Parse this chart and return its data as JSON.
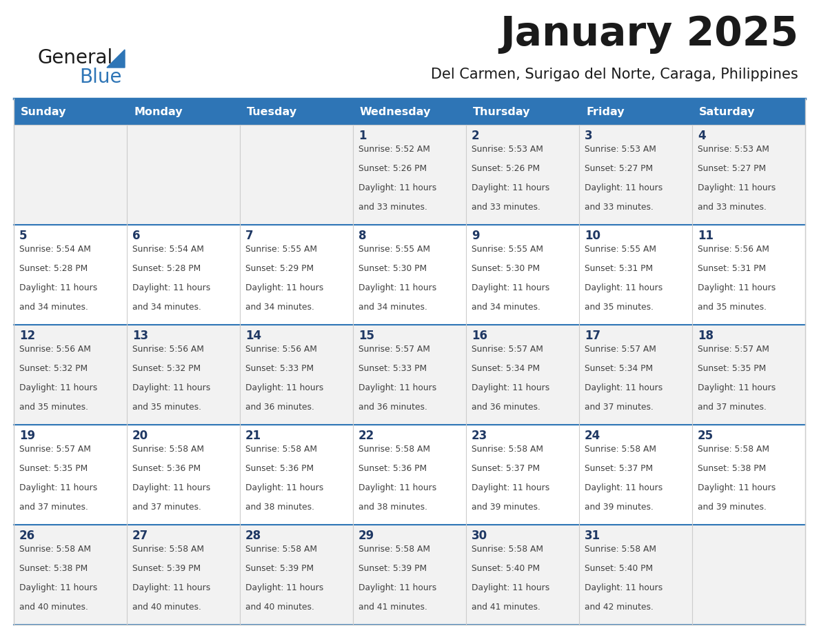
{
  "title": "January 2025",
  "subtitle": "Del Carmen, Surigao del Norte, Caraga, Philippines",
  "header_bg": "#2E75B6",
  "header_text_color": "#FFFFFF",
  "cell_bg_odd": "#F2F2F2",
  "cell_bg_even": "#FFFFFF",
  "day_names": [
    "Sunday",
    "Monday",
    "Tuesday",
    "Wednesday",
    "Thursday",
    "Friday",
    "Saturday"
  ],
  "title_color": "#1A1A1A",
  "subtitle_color": "#1A1A1A",
  "day_number_color": "#1F3864",
  "cell_text_color": "#404040",
  "row_separator_color": "#2E75B6",
  "col_separator_color": "#CCCCCC",
  "outer_border_color": "#CCCCCC",
  "logo_general_color": "#1A1A1A",
  "logo_blue_color": "#2E75B6",
  "days": [
    {
      "date": 1,
      "col": 3,
      "row": 0,
      "sunrise": "5:52 AM",
      "sunset": "5:26 PM",
      "daylight_hours": 11,
      "daylight_minutes": 33
    },
    {
      "date": 2,
      "col": 4,
      "row": 0,
      "sunrise": "5:53 AM",
      "sunset": "5:26 PM",
      "daylight_hours": 11,
      "daylight_minutes": 33
    },
    {
      "date": 3,
      "col": 5,
      "row": 0,
      "sunrise": "5:53 AM",
      "sunset": "5:27 PM",
      "daylight_hours": 11,
      "daylight_minutes": 33
    },
    {
      "date": 4,
      "col": 6,
      "row": 0,
      "sunrise": "5:53 AM",
      "sunset": "5:27 PM",
      "daylight_hours": 11,
      "daylight_minutes": 33
    },
    {
      "date": 5,
      "col": 0,
      "row": 1,
      "sunrise": "5:54 AM",
      "sunset": "5:28 PM",
      "daylight_hours": 11,
      "daylight_minutes": 34
    },
    {
      "date": 6,
      "col": 1,
      "row": 1,
      "sunrise": "5:54 AM",
      "sunset": "5:28 PM",
      "daylight_hours": 11,
      "daylight_minutes": 34
    },
    {
      "date": 7,
      "col": 2,
      "row": 1,
      "sunrise": "5:55 AM",
      "sunset": "5:29 PM",
      "daylight_hours": 11,
      "daylight_minutes": 34
    },
    {
      "date": 8,
      "col": 3,
      "row": 1,
      "sunrise": "5:55 AM",
      "sunset": "5:30 PM",
      "daylight_hours": 11,
      "daylight_minutes": 34
    },
    {
      "date": 9,
      "col": 4,
      "row": 1,
      "sunrise": "5:55 AM",
      "sunset": "5:30 PM",
      "daylight_hours": 11,
      "daylight_minutes": 34
    },
    {
      "date": 10,
      "col": 5,
      "row": 1,
      "sunrise": "5:55 AM",
      "sunset": "5:31 PM",
      "daylight_hours": 11,
      "daylight_minutes": 35
    },
    {
      "date": 11,
      "col": 6,
      "row": 1,
      "sunrise": "5:56 AM",
      "sunset": "5:31 PM",
      "daylight_hours": 11,
      "daylight_minutes": 35
    },
    {
      "date": 12,
      "col": 0,
      "row": 2,
      "sunrise": "5:56 AM",
      "sunset": "5:32 PM",
      "daylight_hours": 11,
      "daylight_minutes": 35
    },
    {
      "date": 13,
      "col": 1,
      "row": 2,
      "sunrise": "5:56 AM",
      "sunset": "5:32 PM",
      "daylight_hours": 11,
      "daylight_minutes": 35
    },
    {
      "date": 14,
      "col": 2,
      "row": 2,
      "sunrise": "5:56 AM",
      "sunset": "5:33 PM",
      "daylight_hours": 11,
      "daylight_minutes": 36
    },
    {
      "date": 15,
      "col": 3,
      "row": 2,
      "sunrise": "5:57 AM",
      "sunset": "5:33 PM",
      "daylight_hours": 11,
      "daylight_minutes": 36
    },
    {
      "date": 16,
      "col": 4,
      "row": 2,
      "sunrise": "5:57 AM",
      "sunset": "5:34 PM",
      "daylight_hours": 11,
      "daylight_minutes": 36
    },
    {
      "date": 17,
      "col": 5,
      "row": 2,
      "sunrise": "5:57 AM",
      "sunset": "5:34 PM",
      "daylight_hours": 11,
      "daylight_minutes": 37
    },
    {
      "date": 18,
      "col": 6,
      "row": 2,
      "sunrise": "5:57 AM",
      "sunset": "5:35 PM",
      "daylight_hours": 11,
      "daylight_minutes": 37
    },
    {
      "date": 19,
      "col": 0,
      "row": 3,
      "sunrise": "5:57 AM",
      "sunset": "5:35 PM",
      "daylight_hours": 11,
      "daylight_minutes": 37
    },
    {
      "date": 20,
      "col": 1,
      "row": 3,
      "sunrise": "5:58 AM",
      "sunset": "5:36 PM",
      "daylight_hours": 11,
      "daylight_minutes": 37
    },
    {
      "date": 21,
      "col": 2,
      "row": 3,
      "sunrise": "5:58 AM",
      "sunset": "5:36 PM",
      "daylight_hours": 11,
      "daylight_minutes": 38
    },
    {
      "date": 22,
      "col": 3,
      "row": 3,
      "sunrise": "5:58 AM",
      "sunset": "5:36 PM",
      "daylight_hours": 11,
      "daylight_minutes": 38
    },
    {
      "date": 23,
      "col": 4,
      "row": 3,
      "sunrise": "5:58 AM",
      "sunset": "5:37 PM",
      "daylight_hours": 11,
      "daylight_minutes": 39
    },
    {
      "date": 24,
      "col": 5,
      "row": 3,
      "sunrise": "5:58 AM",
      "sunset": "5:37 PM",
      "daylight_hours": 11,
      "daylight_minutes": 39
    },
    {
      "date": 25,
      "col": 6,
      "row": 3,
      "sunrise": "5:58 AM",
      "sunset": "5:38 PM",
      "daylight_hours": 11,
      "daylight_minutes": 39
    },
    {
      "date": 26,
      "col": 0,
      "row": 4,
      "sunrise": "5:58 AM",
      "sunset": "5:38 PM",
      "daylight_hours": 11,
      "daylight_minutes": 40
    },
    {
      "date": 27,
      "col": 1,
      "row": 4,
      "sunrise": "5:58 AM",
      "sunset": "5:39 PM",
      "daylight_hours": 11,
      "daylight_minutes": 40
    },
    {
      "date": 28,
      "col": 2,
      "row": 4,
      "sunrise": "5:58 AM",
      "sunset": "5:39 PM",
      "daylight_hours": 11,
      "daylight_minutes": 40
    },
    {
      "date": 29,
      "col": 3,
      "row": 4,
      "sunrise": "5:58 AM",
      "sunset": "5:39 PM",
      "daylight_hours": 11,
      "daylight_minutes": 41
    },
    {
      "date": 30,
      "col": 4,
      "row": 4,
      "sunrise": "5:58 AM",
      "sunset": "5:40 PM",
      "daylight_hours": 11,
      "daylight_minutes": 41
    },
    {
      "date": 31,
      "col": 5,
      "row": 4,
      "sunrise": "5:58 AM",
      "sunset": "5:40 PM",
      "daylight_hours": 11,
      "daylight_minutes": 42
    }
  ]
}
